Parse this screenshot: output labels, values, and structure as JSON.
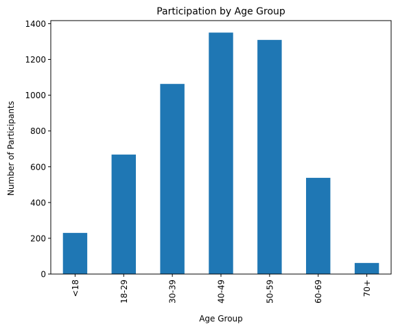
{
  "chart_data": {
    "type": "bar",
    "title": "Participation by Age Group",
    "xlabel": "Age Group",
    "ylabel": "Number of Participants",
    "categories": [
      "<18",
      "18-29",
      "30-39",
      "40-49",
      "50-59",
      "60-69",
      "70+"
    ],
    "values": [
      230,
      668,
      1063,
      1350,
      1309,
      538,
      62
    ],
    "ylim": [
      0,
      1417
    ],
    "yticks": [
      0,
      200,
      400,
      600,
      800,
      1000,
      1200,
      1400
    ],
    "bar_color": "#1f77b4",
    "grid": false,
    "x_tick_rotation": "vertical"
  }
}
